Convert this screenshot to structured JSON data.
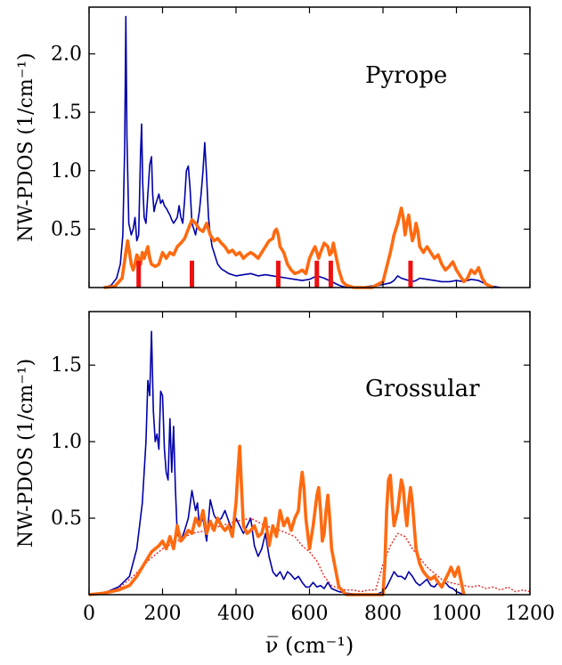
{
  "chart_data": [
    {
      "type": "line",
      "title": "",
      "annotation": "Pyrope",
      "ylabel": "NW-PDOS (1/cm⁻¹)",
      "xlim": [
        0,
        1200
      ],
      "ylim": [
        0,
        2.4
      ],
      "yticks": [
        0.5,
        1.0,
        1.5,
        2.0
      ],
      "ytick_labels": [
        "0.5",
        "1.0",
        "1.5",
        "2.0"
      ],
      "series": [
        {
          "color": "#0000aa",
          "width": 1.6,
          "x": [
            40,
            60,
            75,
            85,
            92,
            97,
            100,
            103,
            108,
            115,
            120,
            125,
            130,
            135,
            140,
            143,
            146,
            150,
            155,
            160,
            165,
            170,
            173,
            177,
            180,
            185,
            190,
            195,
            200,
            205,
            210,
            215,
            220,
            225,
            230,
            240,
            245,
            250,
            255,
            260,
            265,
            270,
            275,
            280,
            285,
            290,
            295,
            300,
            305,
            310,
            315,
            320,
            325,
            330,
            335,
            340,
            345,
            350,
            360,
            370,
            380,
            390,
            400,
            420,
            440,
            460,
            480,
            500,
            520,
            540,
            560,
            580,
            600,
            620,
            640,
            660,
            680,
            700,
            740,
            760,
            790,
            820,
            830,
            840,
            850,
            860,
            870,
            880,
            890,
            900,
            920,
            940,
            960,
            980,
            1000,
            1020,
            1040,
            1060,
            1080,
            1100,
            1120
          ],
          "y": [
            0.0,
            0.02,
            0.08,
            0.2,
            0.45,
            1.2,
            2.32,
            1.3,
            0.55,
            0.45,
            0.5,
            0.6,
            0.4,
            0.45,
            1.15,
            1.4,
            0.9,
            0.6,
            0.55,
            0.8,
            1.05,
            1.12,
            0.8,
            0.65,
            0.7,
            0.75,
            0.8,
            0.72,
            0.75,
            0.7,
            0.68,
            0.65,
            0.62,
            0.58,
            0.55,
            0.6,
            0.7,
            0.6,
            0.55,
            0.75,
            1.0,
            1.04,
            0.85,
            0.55,
            0.5,
            0.45,
            0.55,
            0.65,
            0.8,
            1.0,
            1.24,
            0.95,
            0.6,
            0.45,
            0.35,
            0.3,
            0.25,
            0.2,
            0.16,
            0.14,
            0.12,
            0.11,
            0.1,
            0.11,
            0.12,
            0.1,
            0.11,
            0.1,
            0.09,
            0.08,
            0.07,
            0.06,
            0.07,
            0.1,
            0.08,
            0.05,
            0.02,
            0.0,
            0.0,
            0.01,
            0.02,
            0.04,
            0.06,
            0.1,
            0.08,
            0.07,
            0.06,
            0.05,
            0.06,
            0.08,
            0.07,
            0.06,
            0.05,
            0.05,
            0.06,
            0.05,
            0.07,
            0.06,
            0.03,
            0.01,
            0.0
          ]
        },
        {
          "color": "#ff6a10",
          "width": 3.6,
          "x": [
            40,
            70,
            90,
            100,
            105,
            110,
            115,
            120,
            125,
            130,
            135,
            140,
            145,
            150,
            155,
            160,
            165,
            170,
            180,
            190,
            200,
            210,
            220,
            230,
            240,
            250,
            260,
            270,
            280,
            290,
            300,
            310,
            320,
            330,
            340,
            350,
            360,
            370,
            380,
            390,
            400,
            410,
            420,
            430,
            440,
            450,
            460,
            470,
            480,
            490,
            500,
            505,
            510,
            515,
            520,
            530,
            540,
            550,
            560,
            570,
            580,
            590,
            600,
            610,
            615,
            620,
            625,
            630,
            640,
            650,
            655,
            660,
            665,
            670,
            680,
            690,
            700,
            720,
            740,
            770,
            800,
            820,
            830,
            840,
            850,
            855,
            860,
            865,
            870,
            875,
            880,
            885,
            890,
            895,
            900,
            910,
            920,
            930,
            940,
            950,
            960,
            970,
            980,
            990,
            1000,
            1010,
            1020,
            1030,
            1040,
            1050,
            1060,
            1070,
            1080,
            1100
          ],
          "y": [
            0.0,
            0.01,
            0.08,
            0.3,
            0.4,
            0.3,
            0.2,
            0.15,
            0.2,
            0.28,
            0.25,
            0.2,
            0.3,
            0.25,
            0.3,
            0.35,
            0.25,
            0.2,
            0.18,
            0.2,
            0.3,
            0.25,
            0.3,
            0.28,
            0.35,
            0.38,
            0.42,
            0.5,
            0.58,
            0.55,
            0.5,
            0.48,
            0.55,
            0.45,
            0.4,
            0.42,
            0.38,
            0.35,
            0.3,
            0.32,
            0.28,
            0.3,
            0.25,
            0.28,
            0.3,
            0.28,
            0.25,
            0.3,
            0.35,
            0.4,
            0.42,
            0.48,
            0.5,
            0.45,
            0.35,
            0.3,
            0.2,
            0.15,
            0.12,
            0.13,
            0.15,
            0.12,
            0.25,
            0.32,
            0.35,
            0.3,
            0.25,
            0.3,
            0.38,
            0.35,
            0.28,
            0.3,
            0.38,
            0.3,
            0.15,
            0.05,
            0.02,
            0.0,
            0.0,
            0.0,
            0.05,
            0.3,
            0.45,
            0.55,
            0.68,
            0.6,
            0.45,
            0.55,
            0.62,
            0.5,
            0.4,
            0.45,
            0.55,
            0.48,
            0.35,
            0.3,
            0.35,
            0.3,
            0.25,
            0.28,
            0.2,
            0.15,
            0.18,
            0.22,
            0.15,
            0.1,
            0.05,
            0.08,
            0.15,
            0.12,
            0.17,
            0.08,
            0.03,
            0.0
          ]
        }
      ],
      "markers": {
        "color": "#ee1111",
        "x": [
          135,
          280,
          515,
          620,
          658,
          875
        ],
        "height": 0.23
      }
    },
    {
      "type": "line",
      "title": "",
      "annotation": "Grossular",
      "ylabel": "NW-PDOS (1/cm⁻¹)",
      "xlabel": "ν̅ (cm⁻¹)",
      "xlim": [
        0,
        1200
      ],
      "ylim": [
        0,
        1.85
      ],
      "xticks": [
        0,
        200,
        400,
        600,
        800,
        1000,
        1200
      ],
      "xtick_labels": [
        "0",
        "200",
        "400",
        "600",
        "800",
        "1000",
        "1200"
      ],
      "yticks": [
        0.5,
        1.0,
        1.5
      ],
      "ytick_labels": [
        "0.5",
        "1.0",
        "1.5"
      ],
      "series": [
        {
          "color": "#0000aa",
          "width": 1.6,
          "x": [
            0,
            40,
            80,
            110,
            130,
            145,
            155,
            160,
            165,
            170,
            175,
            180,
            185,
            190,
            195,
            200,
            205,
            210,
            215,
            220,
            225,
            230,
            235,
            240,
            250,
            260,
            270,
            280,
            290,
            295,
            300,
            310,
            320,
            330,
            340,
            350,
            360,
            370,
            380,
            390,
            400,
            410,
            420,
            430,
            440,
            450,
            460,
            470,
            480,
            490,
            500,
            510,
            520,
            530,
            540,
            550,
            560,
            570,
            580,
            590,
            600,
            610,
            620,
            630,
            640,
            650,
            660,
            680,
            700,
            740,
            780,
            800,
            810,
            820,
            830,
            840,
            850,
            860,
            870,
            880,
            890,
            900,
            910,
            920,
            930,
            940,
            950,
            960,
            970,
            980,
            990,
            1000,
            1010,
            1020
          ],
          "y": [
            0.0,
            0.01,
            0.05,
            0.12,
            0.3,
            0.6,
            1.0,
            1.4,
            1.3,
            1.72,
            1.2,
            1.0,
            1.05,
            0.95,
            1.33,
            1.3,
            0.95,
            0.8,
            0.75,
            1.15,
            0.8,
            1.1,
            0.7,
            0.4,
            0.35,
            0.42,
            0.5,
            0.68,
            0.55,
            0.6,
            0.45,
            0.5,
            0.35,
            0.62,
            0.52,
            0.48,
            0.5,
            0.55,
            0.48,
            0.42,
            0.5,
            0.45,
            0.4,
            0.45,
            0.5,
            0.32,
            0.25,
            0.3,
            0.4,
            0.25,
            0.15,
            0.12,
            0.15,
            0.1,
            0.15,
            0.13,
            0.1,
            0.12,
            0.08,
            0.05,
            0.05,
            0.08,
            0.05,
            0.06,
            0.04,
            0.08,
            0.04,
            0.02,
            0.01,
            0.0,
            0.0,
            0.02,
            0.05,
            0.1,
            0.15,
            0.12,
            0.12,
            0.1,
            0.15,
            0.12,
            0.08,
            0.06,
            0.08,
            0.1,
            0.06,
            0.05,
            0.08,
            0.06,
            0.08,
            0.05,
            0.04,
            0.02,
            0.01,
            0.0
          ]
        },
        {
          "color": "#ee2222",
          "width": 1.4,
          "dashed": true,
          "x": [
            0,
            40,
            80,
            120,
            160,
            200,
            240,
            280,
            320,
            360,
            400,
            440,
            480,
            520,
            560,
            580,
            600,
            620,
            640,
            660,
            680,
            700,
            720,
            740,
            760,
            780,
            800,
            820,
            840,
            860,
            880,
            900,
            920,
            940,
            960,
            980,
            1000,
            1020,
            1040,
            1060,
            1080,
            1100,
            1120,
            1140,
            1160,
            1180,
            1200
          ],
          "y": [
            0.0,
            0.01,
            0.04,
            0.12,
            0.22,
            0.3,
            0.35,
            0.4,
            0.42,
            0.45,
            0.48,
            0.5,
            0.45,
            0.42,
            0.38,
            0.32,
            0.28,
            0.22,
            0.12,
            0.06,
            0.04,
            0.03,
            0.03,
            0.02,
            0.03,
            0.03,
            0.2,
            0.32,
            0.4,
            0.38,
            0.3,
            0.24,
            0.18,
            0.14,
            0.1,
            0.08,
            0.07,
            0.06,
            0.05,
            0.06,
            0.04,
            0.05,
            0.03,
            0.05,
            0.02,
            0.03,
            0.02
          ]
        },
        {
          "color": "#ff6a10",
          "width": 3.6,
          "x": [
            0,
            40,
            80,
            110,
            130,
            150,
            170,
            190,
            200,
            210,
            220,
            230,
            240,
            250,
            260,
            270,
            280,
            290,
            300,
            310,
            320,
            330,
            340,
            350,
            360,
            370,
            380,
            390,
            400,
            405,
            410,
            415,
            420,
            430,
            440,
            450,
            460,
            470,
            480,
            490,
            500,
            510,
            520,
            530,
            540,
            550,
            560,
            570,
            575,
            580,
            585,
            590,
            600,
            610,
            620,
            625,
            630,
            635,
            640,
            645,
            650,
            655,
            660,
            680,
            700,
            740,
            780,
            800,
            805,
            810,
            815,
            820,
            825,
            830,
            840,
            850,
            855,
            860,
            865,
            870,
            875,
            880,
            890,
            900,
            910,
            920,
            930,
            940,
            950,
            960,
            970,
            980,
            985,
            990,
            995,
            1000,
            1005,
            1010,
            1020
          ],
          "y": [
            0.0,
            0.01,
            0.03,
            0.06,
            0.12,
            0.2,
            0.28,
            0.32,
            0.35,
            0.3,
            0.38,
            0.3,
            0.45,
            0.35,
            0.38,
            0.42,
            0.4,
            0.5,
            0.45,
            0.55,
            0.4,
            0.48,
            0.42,
            0.5,
            0.45,
            0.42,
            0.45,
            0.38,
            0.6,
            0.8,
            0.97,
            0.7,
            0.45,
            0.4,
            0.42,
            0.45,
            0.38,
            0.4,
            0.5,
            0.32,
            0.45,
            0.38,
            0.55,
            0.45,
            0.5,
            0.42,
            0.5,
            0.55,
            0.7,
            0.8,
            0.7,
            0.5,
            0.3,
            0.45,
            0.65,
            0.7,
            0.55,
            0.35,
            0.4,
            0.55,
            0.65,
            0.5,
            0.3,
            0.05,
            0.0,
            0.0,
            0.0,
            0.0,
            0.2,
            0.55,
            0.75,
            0.78,
            0.6,
            0.45,
            0.55,
            0.75,
            0.7,
            0.55,
            0.45,
            0.6,
            0.7,
            0.6,
            0.3,
            0.2,
            0.15,
            0.12,
            0.1,
            0.12,
            0.08,
            0.05,
            0.1,
            0.15,
            0.18,
            0.15,
            0.12,
            0.15,
            0.18,
            0.12,
            0.0
          ]
        }
      ]
    }
  ]
}
